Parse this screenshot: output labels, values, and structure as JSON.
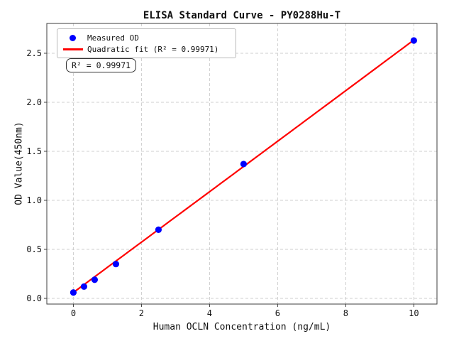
{
  "page": {
    "background": "#ffffff"
  },
  "chart_data": {
    "type": "scatter",
    "title": "ELISA Standard Curve - PY0288Hu-T",
    "xlabel": "Human OCLN Concentration (ng/mL)",
    "ylabel": "OD Value(450nm)",
    "xlim": [
      -0.78,
      10.68
    ],
    "ylim": [
      -0.058,
      2.804
    ],
    "grid": true,
    "legend_position": "upper left",
    "x_ticks": {
      "values": [
        0,
        2,
        4,
        6,
        8,
        10
      ],
      "labels": [
        "0",
        "2",
        "4",
        "6",
        "8",
        "10"
      ]
    },
    "y_ticks": {
      "values": [
        0,
        0.5,
        1.0,
        1.5,
        2.0,
        2.5
      ],
      "labels": [
        "0.0",
        "0.5",
        "1.0",
        "1.5",
        "2.0",
        "2.5"
      ]
    },
    "series": [
      {
        "name": "Measured OD",
        "type": "scatter",
        "color": "#0000ff",
        "x": [
          0,
          0.312,
          0.625,
          1.25,
          2.5,
          5,
          10
        ],
        "y": [
          0.06,
          0.12,
          0.19,
          0.35,
          0.7,
          1.37,
          2.63
        ]
      },
      {
        "name": "Quadratic fit (R² = 0.99971)",
        "type": "line",
        "color": "#ff0000",
        "fit_coeffs": {
          "intercept": 0.06,
          "linear": 0.2565,
          "quadratic": 0.0001
        },
        "x_range": [
          0,
          10
        ]
      }
    ],
    "annotation": {
      "text": "R² = 0.99971"
    },
    "r_squared": 0.99971
  },
  "styles": {
    "grid_color": "#cfcfcf",
    "spine_color": "#3d3d3d",
    "tick_text_color": "#111111"
  }
}
